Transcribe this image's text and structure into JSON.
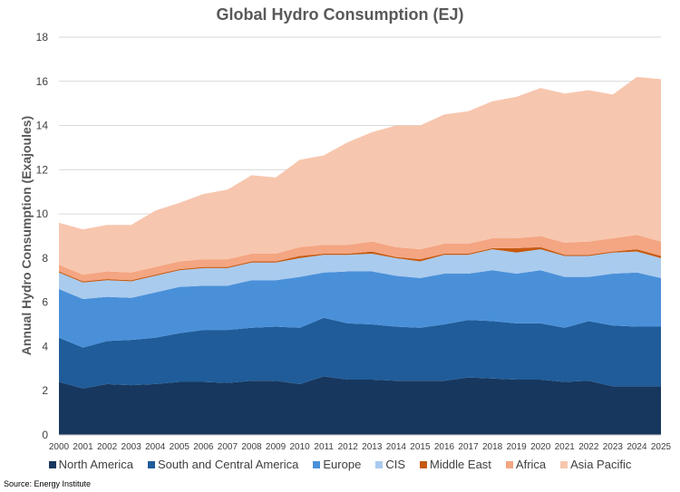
{
  "chart_data": {
    "type": "area",
    "stacked": true,
    "title": "Global Hydro Consumption (EJ)",
    "xlabel": "",
    "ylabel": "Annual Hydro Consumption (Exajoules)",
    "ylim": [
      0,
      18
    ],
    "yticks": [
      0,
      2,
      4,
      6,
      8,
      10,
      12,
      14,
      16,
      18
    ],
    "grid": true,
    "legend_position": "bottom",
    "x": [
      "2000",
      "2001",
      "2002",
      "2003",
      "2004",
      "2005",
      "2006",
      "2007",
      "2008",
      "2009",
      "2010",
      "2011",
      "2012",
      "2013",
      "2014",
      "2015",
      "2016",
      "2017",
      "2018",
      "2019",
      "2020",
      "2021",
      "2022",
      "2023",
      "2024",
      "2025"
    ],
    "series": [
      {
        "name": "North America",
        "color": "#17375e",
        "values": [
          2.4,
          2.1,
          2.3,
          2.25,
          2.3,
          2.4,
          2.4,
          2.35,
          2.45,
          2.45,
          2.3,
          2.65,
          2.5,
          2.5,
          2.45,
          2.45,
          2.45,
          2.6,
          2.55,
          2.5,
          2.5,
          2.4,
          2.45,
          2.2,
          2.2,
          2.2
        ]
      },
      {
        "name": "South and Central America",
        "color": "#1f5c99",
        "values": [
          2.0,
          1.85,
          1.95,
          2.05,
          2.1,
          2.2,
          2.35,
          2.4,
          2.4,
          2.45,
          2.55,
          2.65,
          2.55,
          2.5,
          2.45,
          2.4,
          2.55,
          2.6,
          2.6,
          2.55,
          2.55,
          2.45,
          2.7,
          2.75,
          2.7,
          2.7
        ]
      },
      {
        "name": "Europe",
        "color": "#4a90d9",
        "values": [
          2.2,
          2.2,
          2.0,
          1.9,
          2.05,
          2.1,
          2.0,
          2.0,
          2.15,
          2.1,
          2.3,
          2.05,
          2.35,
          2.4,
          2.3,
          2.25,
          2.3,
          2.1,
          2.3,
          2.25,
          2.4,
          2.3,
          2.0,
          2.35,
          2.45,
          2.2
        ]
      },
      {
        "name": "CIS",
        "color": "#a9cbee",
        "values": [
          0.75,
          0.75,
          0.75,
          0.75,
          0.75,
          0.75,
          0.8,
          0.8,
          0.8,
          0.8,
          0.85,
          0.8,
          0.75,
          0.8,
          0.8,
          0.75,
          0.85,
          0.85,
          0.95,
          0.95,
          0.95,
          0.95,
          0.95,
          0.95,
          0.95,
          0.9
        ]
      },
      {
        "name": "Middle East",
        "color": "#c55a11",
        "values": [
          0.05,
          0.05,
          0.05,
          0.05,
          0.05,
          0.05,
          0.05,
          0.05,
          0.05,
          0.05,
          0.1,
          0.05,
          0.05,
          0.1,
          0.05,
          0.1,
          0.05,
          0.05,
          0.05,
          0.2,
          0.1,
          0.05,
          0.05,
          0.05,
          0.1,
          0.1
        ]
      },
      {
        "name": "Africa",
        "color": "#f4a582",
        "values": [
          0.3,
          0.3,
          0.35,
          0.35,
          0.35,
          0.35,
          0.35,
          0.35,
          0.35,
          0.35,
          0.4,
          0.4,
          0.4,
          0.45,
          0.45,
          0.45,
          0.45,
          0.45,
          0.45,
          0.45,
          0.5,
          0.55,
          0.6,
          0.6,
          0.65,
          0.65
        ]
      },
      {
        "name": "Asia Pacific",
        "color": "#f7c6ae",
        "values": [
          1.9,
          2.05,
          2.1,
          2.15,
          2.55,
          2.65,
          2.95,
          3.15,
          3.55,
          3.45,
          3.95,
          4.05,
          4.65,
          4.95,
          5.5,
          5.6,
          5.85,
          6.0,
          6.2,
          6.4,
          6.7,
          6.75,
          6.85,
          6.5,
          7.15,
          7.35
        ]
      }
    ]
  },
  "source_note": "Source: Energy Institute"
}
